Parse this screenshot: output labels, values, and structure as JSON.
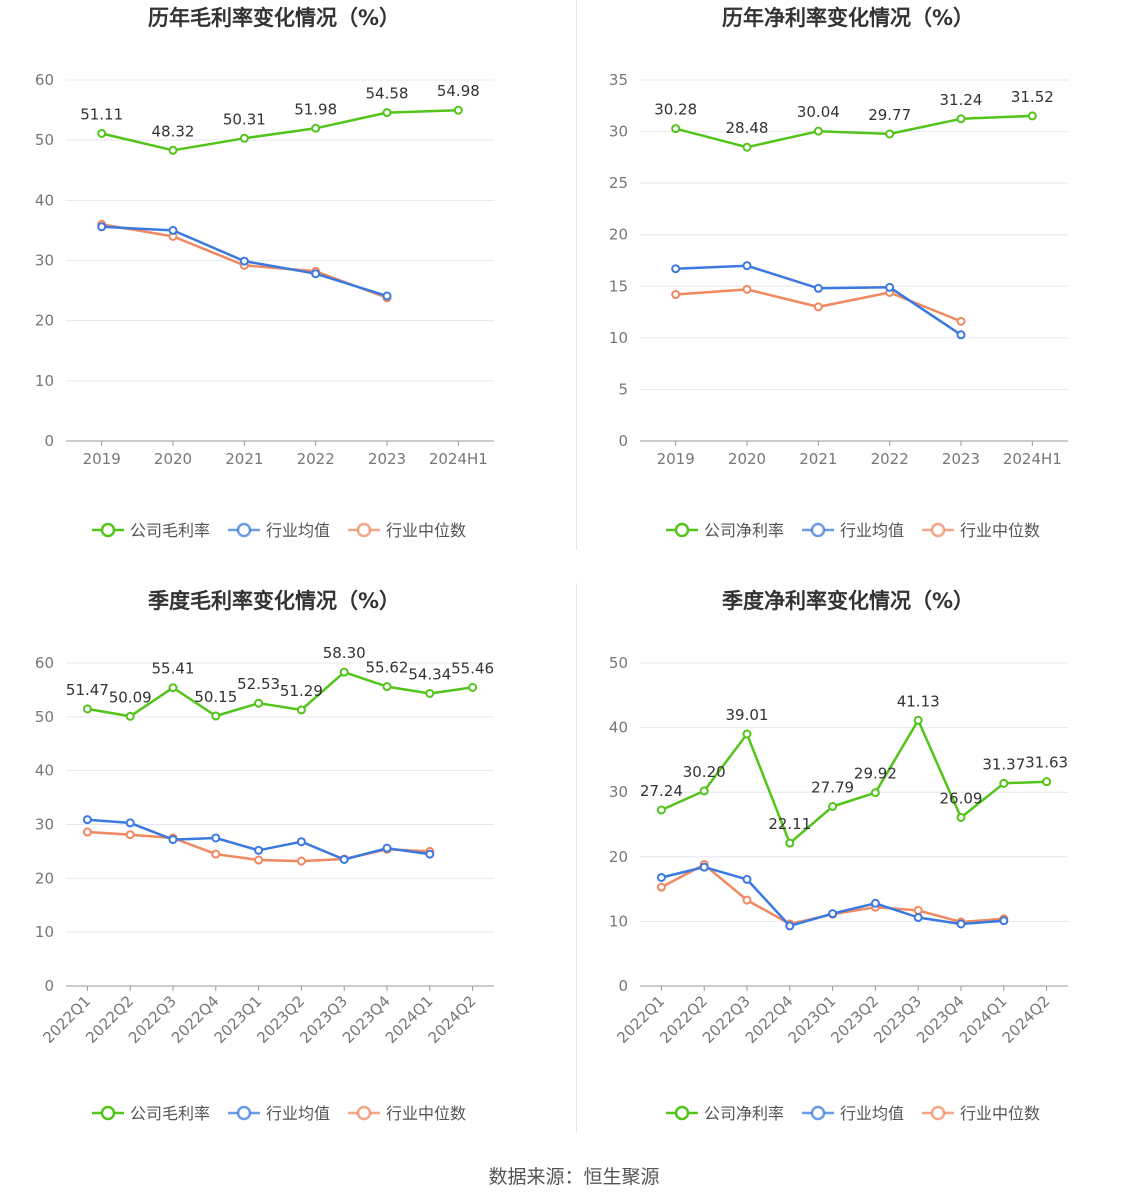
{
  "source_label": "数据来源：恒生聚源",
  "colors": {
    "company": "#52c41a",
    "industry_avg": "#3b79e0",
    "industry_median": "#f08860"
  },
  "chart_data": [
    {
      "type": "line",
      "title": "历年毛利率变化情况（%）",
      "categories": [
        "2019",
        "2020",
        "2021",
        "2022",
        "2023",
        "2024H1"
      ],
      "ylim": [
        0,
        60
      ],
      "yticks": [
        0,
        10,
        20,
        30,
        40,
        50,
        60
      ],
      "grid": true,
      "legend_position": "bottom",
      "series": [
        {
          "name": "公司毛利率",
          "values": [
            51.11,
            48.32,
            50.31,
            51.98,
            54.58,
            54.98
          ],
          "labels": [
            "51.11",
            "48.32",
            "50.31",
            "51.98",
            "54.58",
            "54.98"
          ]
        },
        {
          "name": "行业均值",
          "values": [
            35.6,
            35.0,
            29.9,
            27.8,
            24.1,
            null
          ]
        },
        {
          "name": "行业中位数",
          "values": [
            36.0,
            34.0,
            29.2,
            28.2,
            23.8,
            null
          ]
        }
      ]
    },
    {
      "type": "line",
      "title": "历年净利率变化情况（%）",
      "categories": [
        "2019",
        "2020",
        "2021",
        "2022",
        "2023",
        "2024H1"
      ],
      "ylim": [
        0,
        35
      ],
      "yticks": [
        0,
        5,
        10,
        15,
        20,
        25,
        30,
        35
      ],
      "grid": true,
      "legend_position": "bottom",
      "series": [
        {
          "name": "公司净利率",
          "values": [
            30.28,
            28.48,
            30.04,
            29.77,
            31.24,
            31.52
          ],
          "labels": [
            "30.28",
            "28.48",
            "30.04",
            "29.77",
            "31.24",
            "31.52"
          ]
        },
        {
          "name": "行业均值",
          "values": [
            16.7,
            17.0,
            14.8,
            14.9,
            10.3,
            null
          ]
        },
        {
          "name": "行业中位数",
          "values": [
            14.2,
            14.7,
            13.0,
            14.4,
            11.6,
            null
          ]
        }
      ]
    },
    {
      "type": "line",
      "title": "季度毛利率变化情况（%）",
      "categories": [
        "2022Q1",
        "2022Q2",
        "2022Q3",
        "2022Q4",
        "2023Q1",
        "2023Q2",
        "2023Q3",
        "2023Q4",
        "2024Q1",
        "2024Q2"
      ],
      "ylim": [
        0,
        60
      ],
      "yticks": [
        0,
        10,
        20,
        30,
        40,
        50,
        60
      ],
      "grid": true,
      "legend_position": "bottom",
      "series": [
        {
          "name": "公司毛利率",
          "values": [
            51.47,
            50.09,
            55.41,
            50.15,
            52.53,
            51.29,
            58.3,
            55.62,
            54.34,
            55.46
          ],
          "labels": [
            "51.47",
            "50.09",
            "55.41",
            "50.15",
            "52.53",
            "51.29",
            "58.30",
            "55.62",
            "54.34",
            "55.46"
          ]
        },
        {
          "name": "行业均值",
          "values": [
            30.9,
            30.3,
            27.2,
            27.5,
            25.2,
            26.8,
            23.5,
            25.6,
            24.5,
            null
          ]
        },
        {
          "name": "行业中位数",
          "values": [
            28.6,
            28.1,
            27.5,
            24.5,
            23.4,
            23.2,
            23.6,
            25.4,
            25.0,
            null
          ]
        }
      ]
    },
    {
      "type": "line",
      "title": "季度净利率变化情况（%）",
      "categories": [
        "2022Q1",
        "2022Q2",
        "2022Q3",
        "2022Q4",
        "2023Q1",
        "2023Q2",
        "2023Q3",
        "2023Q4",
        "2024Q1",
        "2024Q2"
      ],
      "ylim": [
        0,
        50
      ],
      "yticks": [
        0,
        10,
        20,
        30,
        40,
        50
      ],
      "grid": true,
      "legend_position": "bottom",
      "series": [
        {
          "name": "公司净利率",
          "values": [
            27.24,
            30.2,
            39.01,
            22.11,
            27.79,
            29.92,
            41.13,
            26.09,
            31.37,
            31.63
          ],
          "labels": [
            "27.24",
            "30.20",
            "39.01",
            "22.11",
            "27.79",
            "29.92",
            "41.13",
            "26.09",
            "31.37",
            "31.63"
          ]
        },
        {
          "name": "行业均值",
          "values": [
            16.8,
            18.4,
            16.5,
            9.3,
            11.2,
            12.8,
            10.6,
            9.6,
            10.1,
            null
          ]
        },
        {
          "name": "行业中位数",
          "values": [
            15.3,
            18.8,
            13.3,
            9.6,
            11.1,
            12.2,
            11.7,
            9.9,
            10.4,
            null
          ]
        }
      ]
    }
  ]
}
